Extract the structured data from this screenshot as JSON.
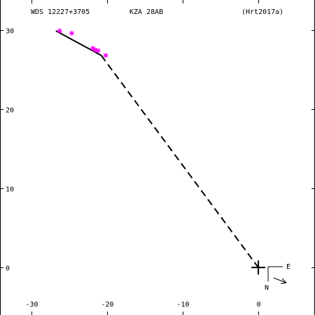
{
  "header": {
    "wds_id": "WDS 12227+3705",
    "discoverer": "KZA  28AB",
    "reference": "(Hrt2017a)"
  },
  "compass": {
    "east_label": "E",
    "north_label": "N"
  },
  "colors": {
    "frame": "#000000",
    "observations": "#ff00ff",
    "orbit": "#000000",
    "background": "#ffffff"
  },
  "chart_data": {
    "type": "scatter",
    "title": "",
    "xlabel": "",
    "ylabel": "",
    "xlim": [
      -34.2,
      7.5
    ],
    "ylim": [
      -6.0,
      33.8
    ],
    "x_ticks": [
      -30,
      -20,
      -10,
      0
    ],
    "y_ticks": [
      0,
      10,
      20,
      30
    ],
    "x_tick_labels": [
      "-30",
      "-20",
      "-10",
      "0"
    ],
    "y_tick_labels": [
      "0",
      "10",
      "20",
      "30"
    ],
    "grid": false,
    "primary_position": {
      "x": 0,
      "y": 0,
      "marker": "plus"
    },
    "observed_points": {
      "marker": "asterisk",
      "color": "#ff00ff",
      "x": [
        -26.3,
        -24.7,
        -21.9,
        -21.6,
        -21.2,
        -20.2
      ],
      "y": [
        29.9,
        29.6,
        27.7,
        27.5,
        27.4,
        26.8
      ]
    },
    "fit_line": {
      "style": "solid",
      "x": [
        -26.8,
        -20.8
      ],
      "y": [
        29.9,
        26.8
      ]
    },
    "projection_line": {
      "style": "dashed",
      "x": [
        -20.8,
        0
      ],
      "y": [
        26.8,
        0
      ]
    }
  }
}
